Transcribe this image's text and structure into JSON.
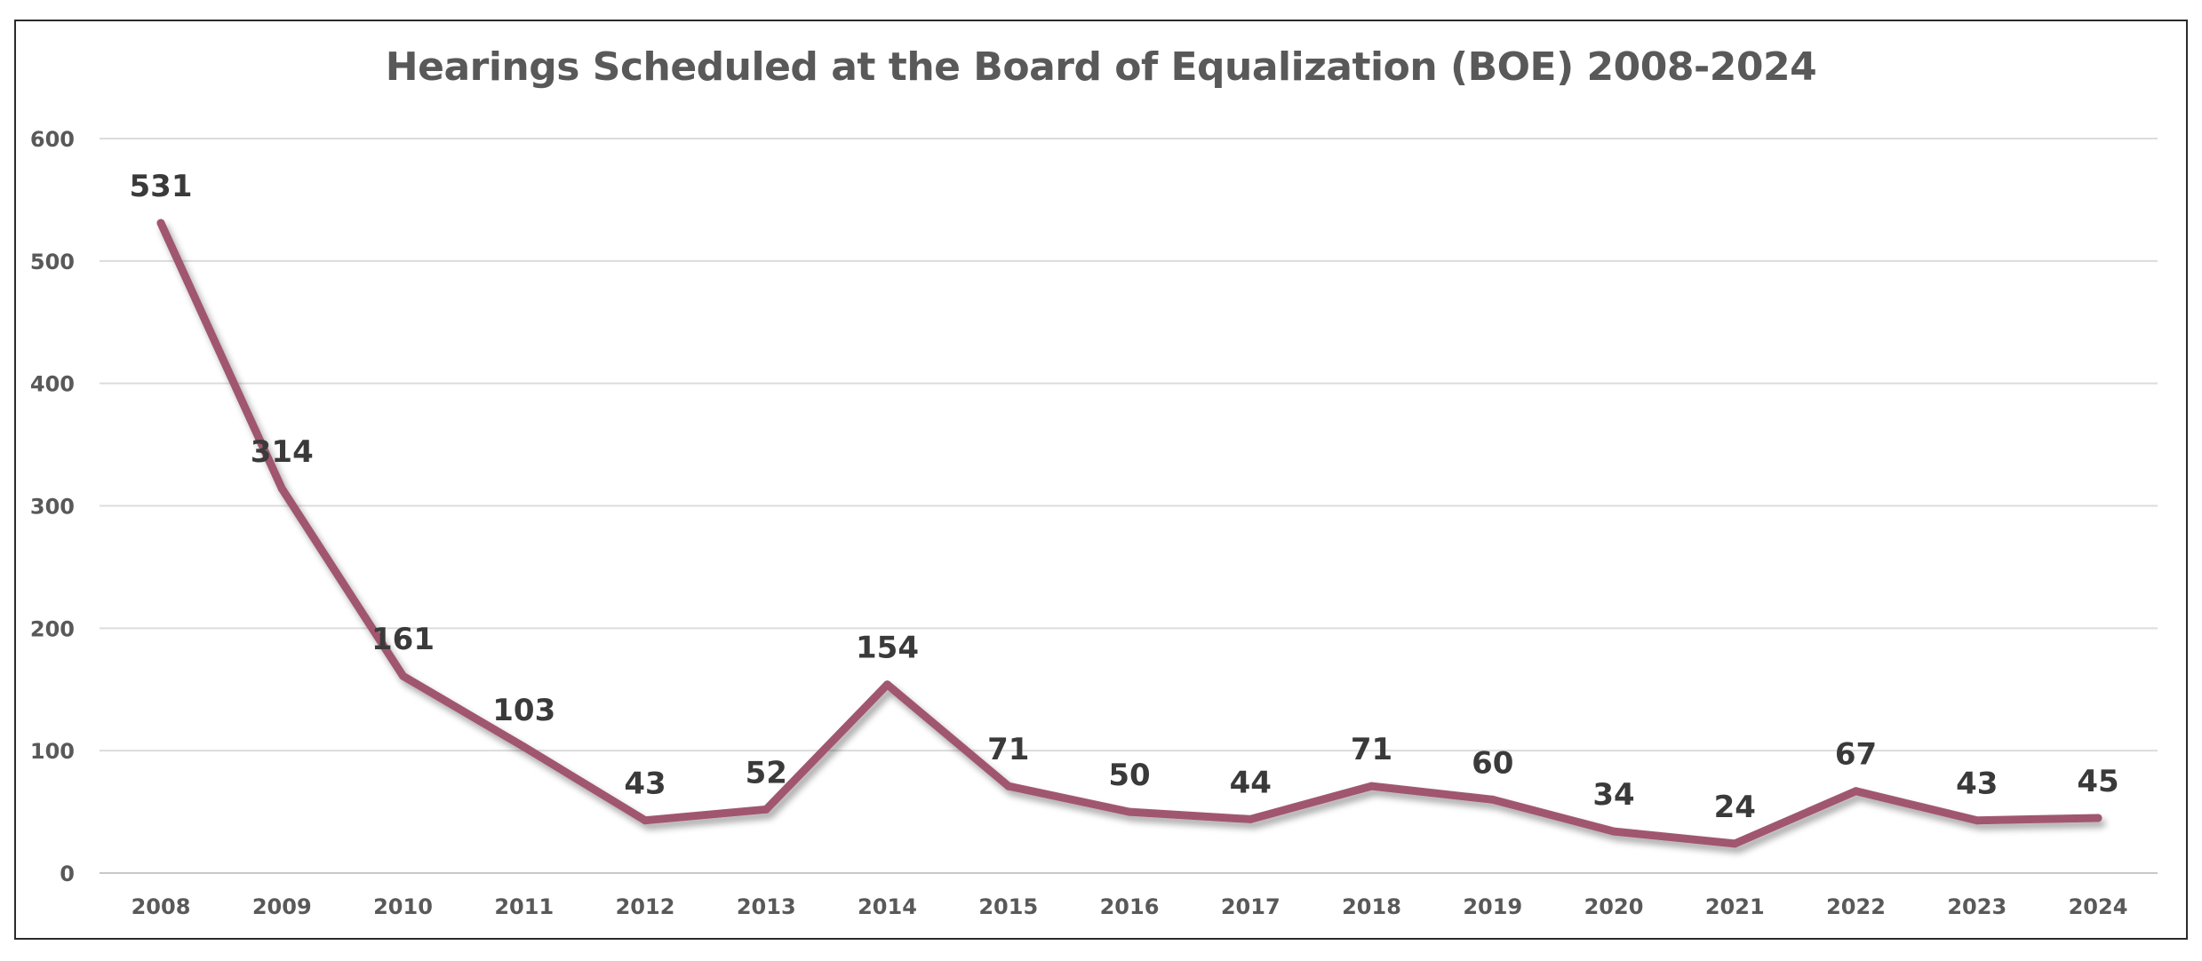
{
  "chart_data": {
    "type": "line",
    "title": "Hearings Scheduled at the Board of Equalization (BOE) 2008-2024",
    "xlabel": "",
    "ylabel": "",
    "categories": [
      "2008",
      "2009",
      "2010",
      "2011",
      "2012",
      "2013",
      "2014",
      "2015",
      "2016",
      "2017",
      "2018",
      "2019",
      "2020",
      "2021",
      "2022",
      "2023",
      "2024"
    ],
    "series": [
      {
        "values": [
          531,
          314,
          161,
          103,
          43,
          52,
          154,
          71,
          50,
          44,
          71,
          60,
          34,
          24,
          67,
          43,
          45
        ],
        "color": "#a15770"
      }
    ],
    "ylim": [
      0,
      600
    ],
    "yticks": [
      0,
      100,
      200,
      300,
      400,
      500,
      600
    ],
    "grid": "horizontal",
    "legend": "none",
    "data_labels": true
  }
}
